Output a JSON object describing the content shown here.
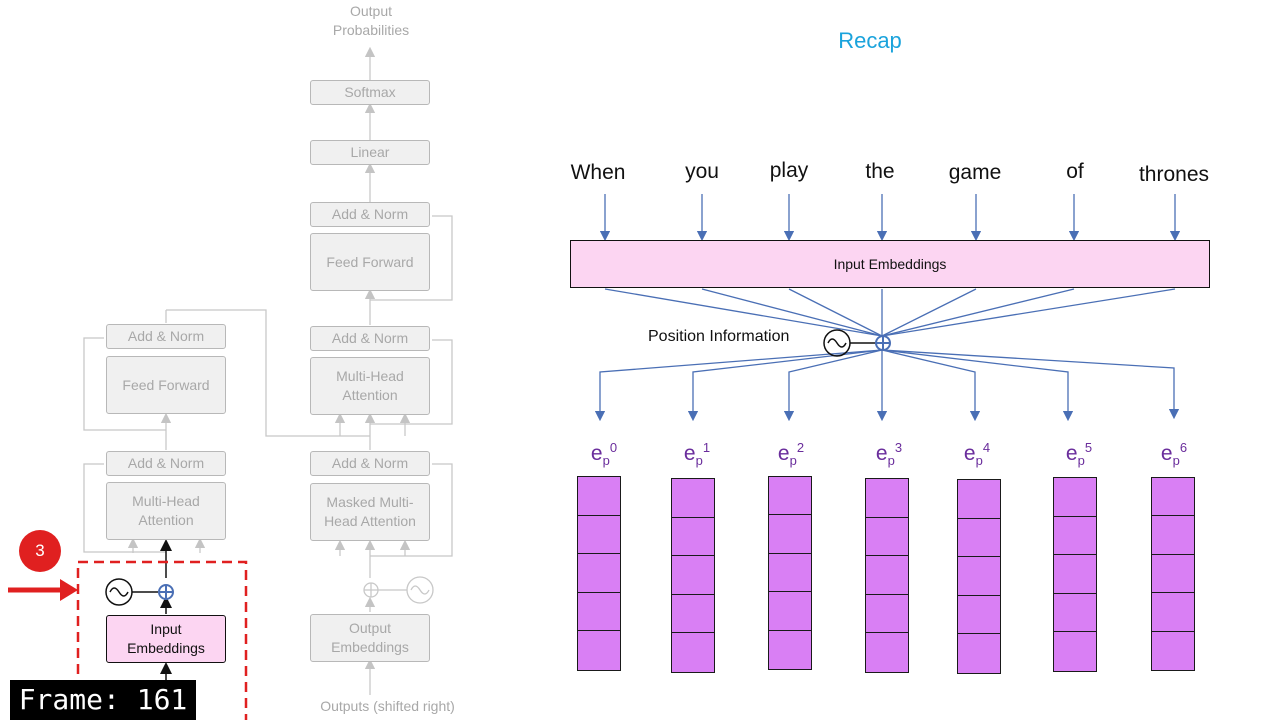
{
  "title": "Recap",
  "transformer": {
    "output_probabilities": "Output\nProbabilities",
    "softmax": "Softmax",
    "linear": "Linear",
    "add_norm": "Add & Norm",
    "feed_forward": "Feed Forward",
    "multi_head_attention": "Multi-Head\nAttention",
    "masked_multi_head_attention": "Masked Multi-\nHead Attention",
    "input_embeddings": "Input\nEmbeddings",
    "output_embeddings": "Output\nEmbeddings",
    "outputs_shifted_right": "Outputs (shifted right)",
    "step_badge": "3"
  },
  "recap": {
    "words": [
      "When",
      "you",
      "play",
      "the",
      "game",
      "of",
      "thrones"
    ],
    "input_embeddings_label": "Input Embeddings",
    "position_information_label": "Position Information",
    "vector_base": "e",
    "vector_sub": "p",
    "vector_indices": [
      "0",
      "1",
      "2",
      "3",
      "4",
      "5",
      "6"
    ]
  },
  "overlay": {
    "frame_text": "Frame: 161"
  },
  "colors": {
    "title": "#1aa3dc",
    "arrow": "#4a6fb5",
    "embedding_fill": "#fcd5f2",
    "vector_fill": "#d97ff4",
    "vector_label": "#6a2d9c",
    "highlight": "#e02020"
  }
}
